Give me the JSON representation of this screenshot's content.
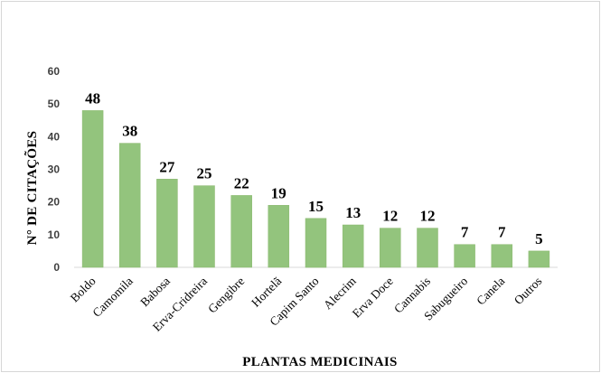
{
  "chart_data": {
    "type": "bar",
    "title": "",
    "xlabel": "PLANTAS MEDICINAIS",
    "ylabel": "N° DE CITAÇÕES",
    "categories": [
      "Boldo",
      "Camomila",
      "Babosa",
      "Erva-Cridreira",
      "Gengibre",
      "Hortelã",
      "Capim Santo",
      "Alecrim",
      "Erva Doce",
      "Cannabis",
      "Sabugueiro",
      "Canela",
      "Outros"
    ],
    "values": [
      48,
      38,
      27,
      25,
      22,
      19,
      15,
      13,
      12,
      12,
      7,
      7,
      5
    ],
    "ylim": [
      0,
      60
    ],
    "yticks": [
      0,
      10,
      20,
      30,
      40,
      50,
      60
    ],
    "grid": false,
    "data_labels": true,
    "bar_color": "#93c47d",
    "bar_edge_color": "#8ab86f",
    "axis_color": "#d9d9d9"
  }
}
